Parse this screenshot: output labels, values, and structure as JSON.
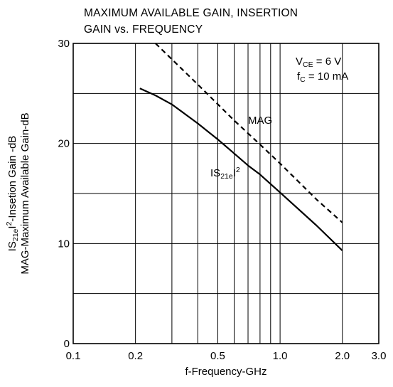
{
  "chart_data": {
    "type": "line",
    "title_lines": [
      "MAXIMUM AVAILABLE GAIN, INSERTION",
      "GAIN vs. FREQUENCY"
    ],
    "xlabel": "f-Frequency-GHz",
    "ylabel_lines": [
      "|S21e|2-Insetion Gain -dB",
      "MAG-Maximum Available Gain-dB"
    ],
    "ylabel_parts": {
      "line1_prefix": "IS",
      "line1_sub": "21e",
      "line1_mid": "I",
      "line1_sup": "2",
      "line1_suffix": "-Insetion Gain -dB",
      "line2": "MAG-Maximum Available Gain-dB"
    },
    "x_scale": "log",
    "xlim": [
      0.1,
      3.0
    ],
    "ylim": [
      0,
      30
    ],
    "x_ticks": [
      {
        "value": 0.1,
        "label": "0.1"
      },
      {
        "value": 0.2,
        "label": "0.2"
      },
      {
        "value": 0.5,
        "label": "0.5"
      },
      {
        "value": 1.0,
        "label": "1.0"
      },
      {
        "value": 2.0,
        "label": "2.0"
      },
      {
        "value": 3.0,
        "label": "3.0"
      }
    ],
    "x_gridlines": [
      0.2,
      0.3,
      0.4,
      0.5,
      0.6,
      0.7,
      0.8,
      0.9,
      1.0,
      2.0
    ],
    "y_ticks": [
      {
        "value": 0,
        "label": "0"
      },
      {
        "value": 10,
        "label": "10"
      },
      {
        "value": 20,
        "label": "20"
      },
      {
        "value": 30,
        "label": "30"
      }
    ],
    "y_gridlines": [
      5,
      10,
      15,
      20,
      25
    ],
    "grid": true,
    "conditions": {
      "vce": {
        "main": "V",
        "sub": "CE",
        "rest": " = 6 V"
      },
      "ic": {
        "main": "f",
        "sub": "C",
        "rest": " = 10 mA"
      }
    },
    "series": [
      {
        "name": "MAG",
        "style": "dashed",
        "x": [
          0.25,
          0.4,
          0.6,
          0.8,
          1.0,
          1.5,
          2.0
        ],
        "y": [
          30,
          25.9,
          22.3,
          19.9,
          18.0,
          14.4,
          12.1
        ]
      },
      {
        "name": "|S21e|2",
        "label_parts": {
          "prefix": "IS",
          "sub": "21e",
          "mid": "I",
          "sup": "2"
        },
        "style": "solid",
        "x": [
          0.21,
          0.25,
          0.3,
          0.4,
          0.5,
          0.6,
          0.7,
          0.8,
          1.0,
          1.5,
          2.0
        ],
        "y": [
          25.5,
          24.8,
          23.9,
          22.0,
          20.4,
          19.0,
          17.8,
          16.9,
          15.1,
          11.8,
          9.3
        ]
      }
    ],
    "line_color": "#000000",
    "grid_color": "#000000"
  }
}
